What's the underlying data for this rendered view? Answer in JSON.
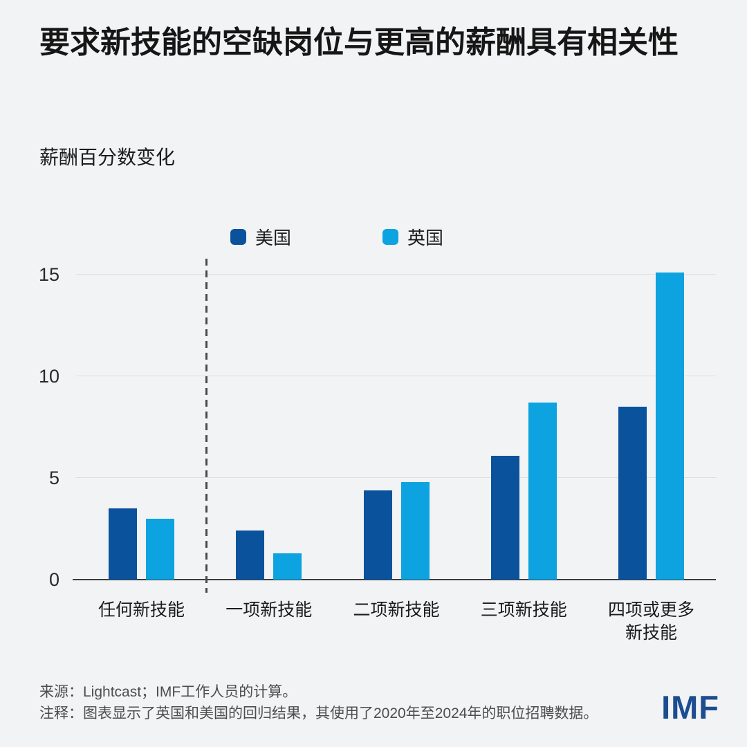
{
  "header": {
    "title": "要求新技能的空缺岗位与更高的薪酬具有相关性",
    "subtitle": "薪酬百分数变化"
  },
  "chart_data": {
    "type": "bar",
    "title": "要求新技能的空缺岗位与更高的薪酬具有相关性",
    "ylabel": "薪酬百分数变化",
    "xlabel": "",
    "categories": [
      "任何新技能",
      "一项新技能",
      "二项新技能",
      "三项新技能",
      "四项或更多\n新技能"
    ],
    "series": [
      {
        "name": "美国",
        "color": "#0a529c",
        "values": [
          3.5,
          2.4,
          4.4,
          6.1,
          8.5
        ]
      },
      {
        "name": "英国",
        "color": "#0ca3e0",
        "values": [
          3.0,
          1.3,
          4.8,
          8.7,
          15.1
        ]
      }
    ],
    "yticks": [
      0,
      5,
      10,
      15
    ],
    "ylim": [
      0,
      15.9
    ],
    "grid": true,
    "legend_position": "top",
    "separator_after_category": 0
  },
  "footer": {
    "source": "来源：Lightcast；IMF工作人员的计算。",
    "note": "注释：图表显示了英国和美国的回归结果，其使用了2020年至2024年的职位招聘数据。",
    "logo": "IMF"
  },
  "colors": {
    "background": "#f2f3f5",
    "us_bar": "#0a529c",
    "uk_bar": "#0ca3e0",
    "gridline": "#dcdee1",
    "axis": "#3c3c3c",
    "separator": "#4a4a4a",
    "logo_blue": "#1b4d8f"
  }
}
